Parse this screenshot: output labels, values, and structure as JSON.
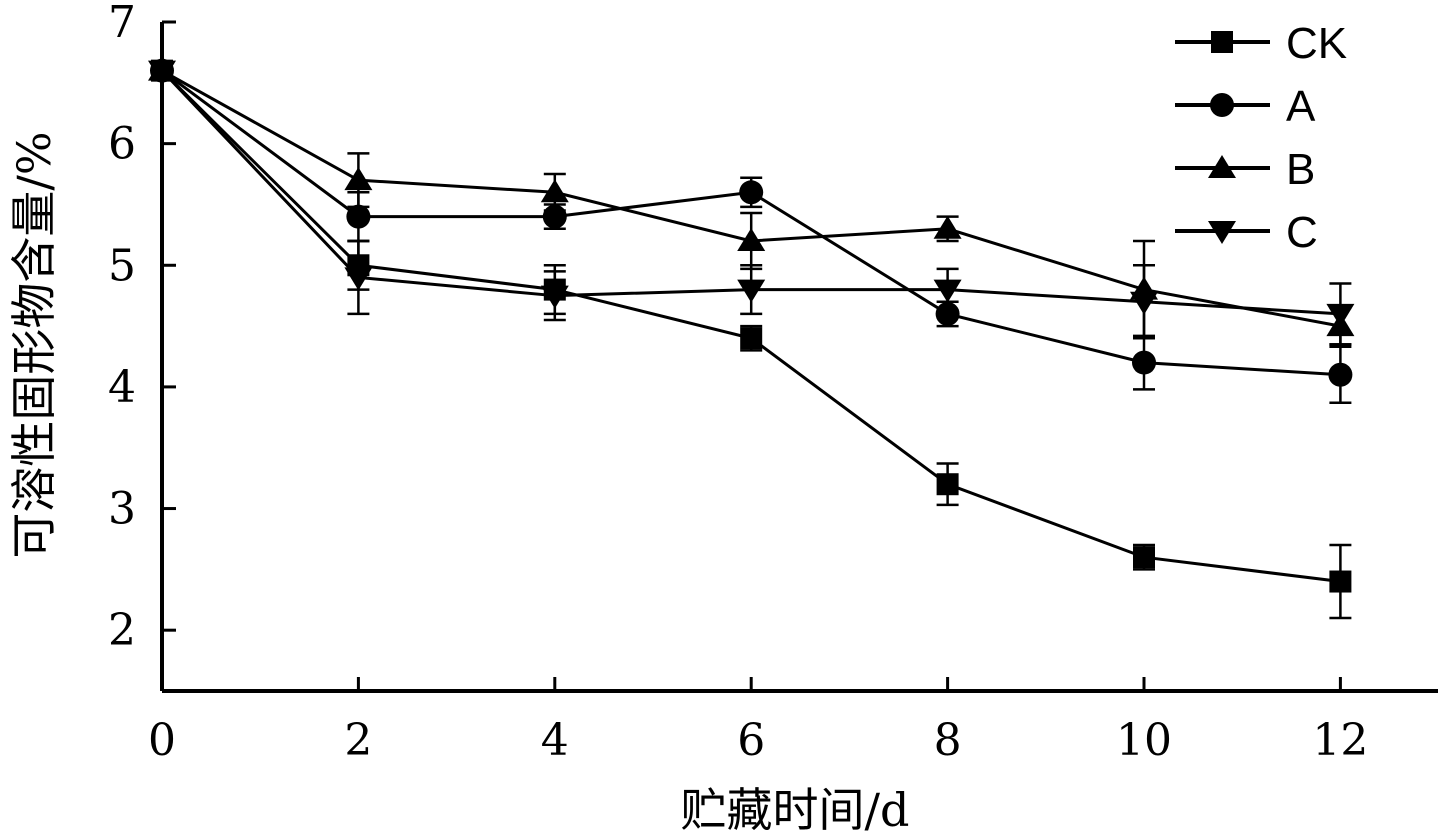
{
  "chart_data": {
    "type": "line",
    "title": "",
    "xlabel": "贮藏时间/d",
    "ylabel": "可溶性固形物含量/%",
    "x": [
      0,
      2,
      4,
      6,
      8,
      10,
      12
    ],
    "xlim": [
      0,
      13
    ],
    "ylim": [
      1.5,
      7
    ],
    "xticks": [
      "0",
      "2",
      "4",
      "6",
      "8",
      "10",
      "12"
    ],
    "yticks": [
      "2",
      "3",
      "4",
      "5",
      "6",
      "7"
    ],
    "grid": false,
    "legend_position": "top-right",
    "series": [
      {
        "name": "CK",
        "marker": "square",
        "values": [
          6.6,
          5.0,
          4.8,
          4.4,
          3.2,
          2.6,
          2.4
        ],
        "errors": [
          0.05,
          0.2,
          0.2,
          0.1,
          0.17,
          0.1,
          0.3
        ]
      },
      {
        "name": "A",
        "marker": "circle",
        "values": [
          6.6,
          5.4,
          5.4,
          5.6,
          4.6,
          4.2,
          4.1
        ],
        "errors": [
          0.05,
          0.2,
          0.1,
          0.12,
          0.1,
          0.22,
          0.23
        ]
      },
      {
        "name": "B",
        "marker": "triangle-up",
        "values": [
          6.6,
          5.7,
          5.6,
          5.2,
          5.3,
          4.8,
          4.5
        ],
        "errors": [
          0.05,
          0.22,
          0.15,
          0.23,
          0.1,
          0.4,
          0.15
        ]
      },
      {
        "name": "C",
        "marker": "triangle-down",
        "values": [
          6.6,
          4.9,
          4.75,
          4.8,
          4.8,
          4.7,
          4.6
        ],
        "errors": [
          0.05,
          0.3,
          0.2,
          0.2,
          0.17,
          0.3,
          0.25
        ]
      }
    ]
  }
}
